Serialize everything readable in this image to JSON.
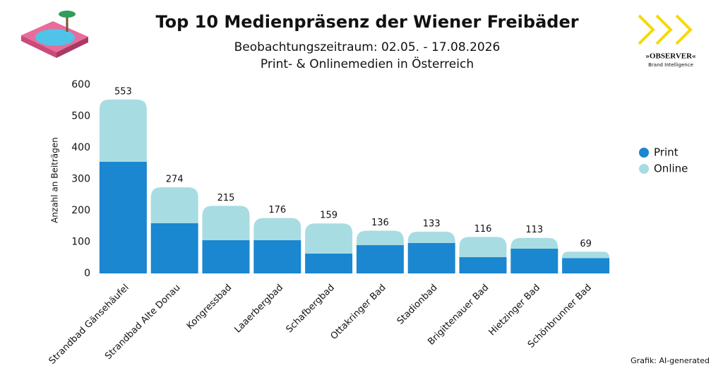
{
  "chart_data": {
    "type": "stacked_bar",
    "title": "Top 10 Medienpräsenz der Wiener Freibäder",
    "subtitle": [
      "Beobachtungszeitraum: 02.05. - 17.08.2026",
      "Print- & Onlinemedien in Österreich"
    ],
    "y_label": "Anzahl an Beiträgen",
    "categories": [
      "Strandbad Gänsehäufel",
      "Strandbad Alte Donau",
      "Kongressbad",
      "Laaerbergbad",
      "Schafbergbad",
      "Ottakringer Bad",
      "Stadionbad",
      "Brigittenauer Bad",
      "Hietzinger Bad",
      "Schönbrunner Bad"
    ],
    "series": [
      {
        "name": "Print",
        "color": "#1a87d0",
        "values": [
          355,
          160,
          106,
          106,
          63,
          90,
          97,
          52,
          79,
          49
        ]
      },
      {
        "name": "Online",
        "color": "#a8dce3",
        "values": [
          198,
          114,
          109,
          70,
          96,
          46,
          36,
          64,
          34,
          20
        ]
      }
    ],
    "totals": [
      553,
      274,
      215,
      176,
      159,
      136,
      133,
      116,
      113,
      69
    ],
    "ylim": [
      0,
      600
    ],
    "yticks": [
      0,
      100,
      200,
      300,
      400,
      500,
      600
    ],
    "grid": false,
    "legend": "right",
    "credit": "Grafik: AI-generated",
    "logo": {
      "name": "»OBSERVER«",
      "tagline": "Brand Intelligence"
    }
  }
}
